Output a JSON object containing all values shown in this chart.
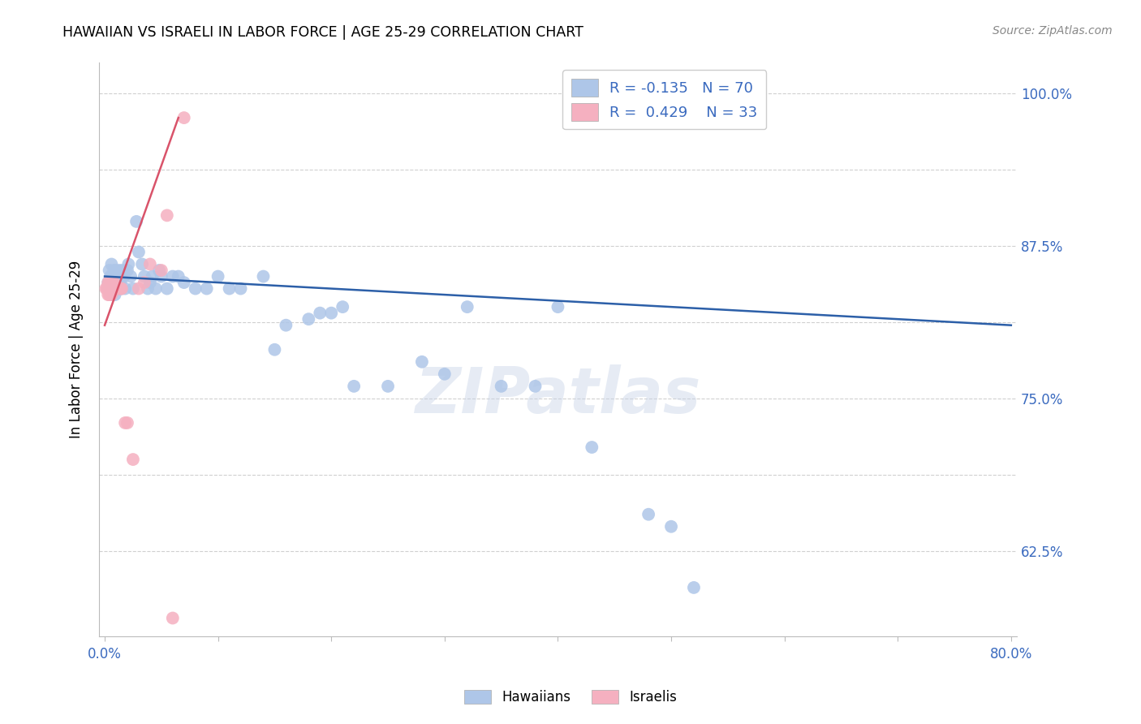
{
  "title": "HAWAIIAN VS ISRAELI IN LABOR FORCE | AGE 25-29 CORRELATION CHART",
  "source": "Source: ZipAtlas.com",
  "ylabel": "In Labor Force | Age 25-29",
  "xlim": [
    -0.005,
    0.805
  ],
  "ylim": [
    0.555,
    1.025
  ],
  "ytick_values": [
    0.625,
    0.6875,
    0.75,
    0.8125,
    0.875,
    0.9375,
    1.0
  ],
  "ytick_labels": [
    "62.5%",
    "",
    "75.0%",
    "",
    "87.5%",
    "",
    "100.0%"
  ],
  "xtick_values": [
    0.0,
    0.1,
    0.2,
    0.3,
    0.4,
    0.5,
    0.6,
    0.7,
    0.8
  ],
  "xtick_labels": [
    "0.0%",
    "",
    "",
    "",
    "",
    "",
    "",
    "",
    "80.0%"
  ],
  "grid_color": "#d0d0d0",
  "background_color": "#ffffff",
  "hawaiian_color": "#aec6e8",
  "israeli_color": "#f5b0c0",
  "hawaiian_line_color": "#2c5fa8",
  "israeli_line_color": "#d9536a",
  "R_hawaiian": -0.135,
  "N_hawaiian": 70,
  "R_israeli": 0.429,
  "N_israeli": 33,
  "watermark": "ZIPatlas",
  "hawaiian_scatter": {
    "x": [
      0.003,
      0.004,
      0.004,
      0.005,
      0.005,
      0.006,
      0.006,
      0.006,
      0.007,
      0.007,
      0.007,
      0.008,
      0.008,
      0.009,
      0.009,
      0.009,
      0.01,
      0.01,
      0.01,
      0.011,
      0.011,
      0.012,
      0.013,
      0.014,
      0.015,
      0.016,
      0.017,
      0.018,
      0.02,
      0.021,
      0.023,
      0.025,
      0.028,
      0.03,
      0.033,
      0.035,
      0.038,
      0.04,
      0.042,
      0.045,
      0.048,
      0.05,
      0.055,
      0.06,
      0.065,
      0.07,
      0.08,
      0.09,
      0.1,
      0.11,
      0.12,
      0.14,
      0.15,
      0.16,
      0.18,
      0.19,
      0.2,
      0.21,
      0.22,
      0.25,
      0.28,
      0.3,
      0.32,
      0.35,
      0.38,
      0.4,
      0.43,
      0.48,
      0.5,
      0.52
    ],
    "y": [
      0.845,
      0.84,
      0.855,
      0.835,
      0.85,
      0.84,
      0.85,
      0.86,
      0.845,
      0.84,
      0.85,
      0.84,
      0.855,
      0.845,
      0.835,
      0.85,
      0.85,
      0.84,
      0.855,
      0.84,
      0.85,
      0.85,
      0.855,
      0.845,
      0.84,
      0.855,
      0.85,
      0.84,
      0.855,
      0.86,
      0.85,
      0.84,
      0.895,
      0.87,
      0.86,
      0.85,
      0.84,
      0.845,
      0.85,
      0.84,
      0.855,
      0.85,
      0.84,
      0.85,
      0.85,
      0.845,
      0.84,
      0.84,
      0.85,
      0.84,
      0.84,
      0.85,
      0.79,
      0.81,
      0.815,
      0.82,
      0.82,
      0.825,
      0.76,
      0.76,
      0.78,
      0.77,
      0.825,
      0.76,
      0.76,
      0.825,
      0.71,
      0.655,
      0.645,
      0.595
    ]
  },
  "israeli_scatter": {
    "x": [
      0.001,
      0.002,
      0.003,
      0.003,
      0.003,
      0.004,
      0.004,
      0.004,
      0.005,
      0.005,
      0.005,
      0.006,
      0.006,
      0.006,
      0.007,
      0.007,
      0.008,
      0.008,
      0.009,
      0.01,
      0.012,
      0.014,
      0.015,
      0.018,
      0.02,
      0.025,
      0.03,
      0.035,
      0.04,
      0.05,
      0.055,
      0.06,
      0.07
    ],
    "y": [
      0.84,
      0.84,
      0.835,
      0.84,
      0.845,
      0.835,
      0.84,
      0.845,
      0.835,
      0.84,
      0.845,
      0.835,
      0.84,
      0.845,
      0.84,
      0.845,
      0.84,
      0.845,
      0.84,
      0.84,
      0.84,
      0.84,
      0.84,
      0.73,
      0.73,
      0.7,
      0.84,
      0.845,
      0.86,
      0.855,
      0.9,
      0.57,
      0.98
    ]
  },
  "hawaiian_line": {
    "x0": 0.0,
    "x1": 0.8,
    "y0": 0.85,
    "y1": 0.81
  },
  "israeli_line": {
    "x0": 0.0,
    "x1": 0.065,
    "y0": 0.81,
    "y1": 0.98
  }
}
